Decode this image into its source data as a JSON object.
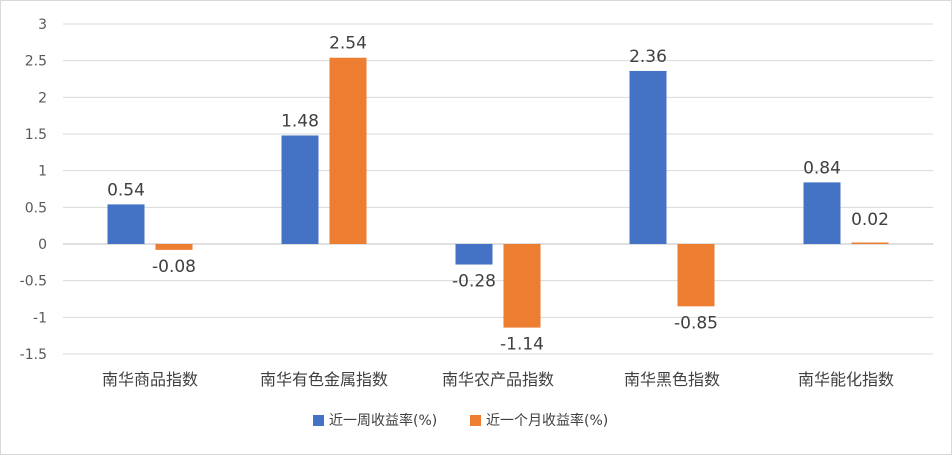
{
  "chart_data": {
    "type": "bar",
    "title": "",
    "xlabel": "",
    "ylabel": "",
    "categories": [
      "南华商品指数",
      "南华有色金属指数",
      "南华农产品指数",
      "南华黑色指数",
      "南华能化指数"
    ],
    "series": [
      {
        "name": "近一周收益率(%)",
        "color": "#4472C4",
        "values": [
          0.54,
          1.48,
          -0.28,
          2.36,
          0.84
        ]
      },
      {
        "name": "近一个月收益率(%)",
        "color": "#ED7D31",
        "values": [
          -0.08,
          2.54,
          -1.14,
          -0.85,
          0.02
        ]
      }
    ],
    "ylim": [
      -1.5,
      3
    ],
    "yticks": [
      3,
      2.5,
      2,
      1.5,
      1,
      0.5,
      0,
      -0.5,
      -1,
      -1.5
    ],
    "data_labels": [
      [
        "0.54",
        "1.48",
        "-0.28",
        "2.36",
        "0.84"
      ],
      [
        "-0.08",
        "2.54",
        "-1.14",
        "-0.85",
        "0.02"
      ]
    ],
    "grid": true,
    "legend_position": "bottom"
  }
}
